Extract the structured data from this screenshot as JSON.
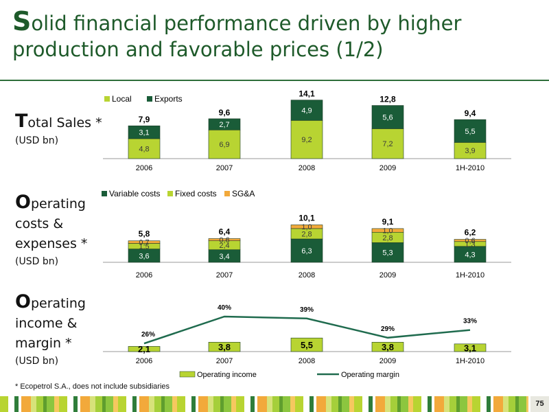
{
  "title": {
    "cap": "S",
    "rest": "olid financial performance driven by higher production and favorable prices (1/2)"
  },
  "labels": {
    "sales": {
      "cap": "T",
      "rest": "otal Sales *",
      "unit": "(USD bn)"
    },
    "costs": {
      "cap": "O",
      "line1": "perating",
      "line2": "costs &",
      "line3": "expenses *",
      "unit": "(USD bn)"
    },
    "income": {
      "cap": "O",
      "line1": "perating",
      "line2": "income &",
      "line3": "margin *",
      "unit": "(USD bn)"
    }
  },
  "footnote": "* Ecopetrol S.A., does not include subsidiaries",
  "page_number": "75",
  "colors": {
    "dark_green": "#1a5c38",
    "light_green": "#b8d432",
    "orange": "#f2a93b",
    "title": "#1e5a2a"
  },
  "chart_data": [
    {
      "type": "bar",
      "stacked": true,
      "categories": [
        "2006",
        "2007",
        "2008",
        "2009",
        "1H-2010"
      ],
      "series": [
        {
          "name": "Local",
          "values": [
            "4,8",
            "6,9",
            "9,2",
            "7,2",
            "3,9"
          ]
        },
        {
          "name": "Exports",
          "values": [
            "3,1",
            "2,7",
            "4,9",
            "5,6",
            "5,5"
          ]
        }
      ],
      "totals": [
        "7,9",
        "9,6",
        "14,1",
        "12,8",
        "9,4"
      ],
      "legend": "top-left"
    },
    {
      "type": "bar",
      "stacked": true,
      "categories": [
        "2006",
        "2007",
        "2008",
        "2009",
        "1H-2010"
      ],
      "series": [
        {
          "name": "Variable costs",
          "values": [
            "3,6",
            "3,4",
            "6,3",
            "5,3",
            "4,3"
          ]
        },
        {
          "name": "Fixed costs",
          "values": [
            "1,5",
            "2,4",
            "2,8",
            "2,8",
            "1,3"
          ]
        },
        {
          "name": "SG&A",
          "values": [
            "0,7",
            "0,6",
            "1,0",
            "1,0",
            "0,6"
          ]
        }
      ],
      "totals": [
        "5,8",
        "6,4",
        "10,1",
        "9,1",
        "6,2"
      ],
      "legend": "top-left"
    },
    {
      "type": "bar",
      "categories": [
        "2006",
        "2007",
        "2008",
        "2009",
        "1H-2010"
      ],
      "series": [
        {
          "name": "Operating income",
          "kind": "bar",
          "values": [
            "2,1",
            "3,8",
            "5,5",
            "3,8",
            "3,1"
          ]
        },
        {
          "name": "Operating margin",
          "kind": "line",
          "values": [
            26,
            40,
            39,
            29,
            33
          ],
          "labels": [
            "26%",
            "40%",
            "39%",
            "29%",
            "33%"
          ]
        }
      ],
      "legend": "bottom"
    }
  ]
}
